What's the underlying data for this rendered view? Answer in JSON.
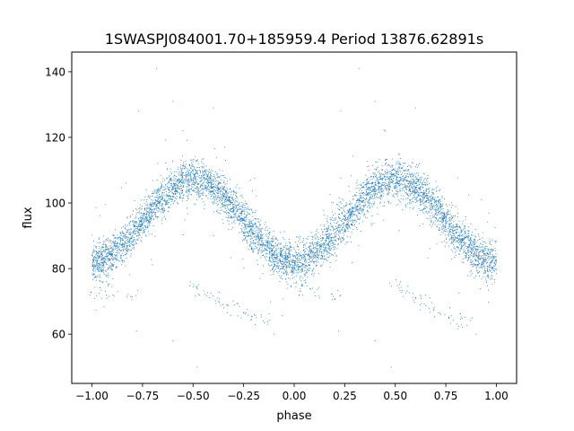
{
  "chart_data": {
    "type": "scatter",
    "title": "1SWASPJ084001.70+185959.4 Period 13876.62891s",
    "xlabel": "phase",
    "ylabel": "flux",
    "xlim": [
      -1.1,
      1.1
    ],
    "ylim": [
      45,
      146
    ],
    "xticks": [
      -1.0,
      -0.75,
      -0.5,
      -0.25,
      0.0,
      0.25,
      0.5,
      0.75,
      1.0
    ],
    "xtick_labels": [
      "−1.00",
      "−0.75",
      "−0.50",
      "−0.25",
      "0.00",
      "0.25",
      "0.50",
      "0.75",
      "1.00"
    ],
    "yticks": [
      60,
      80,
      100,
      120,
      140
    ],
    "ytick_labels": [
      "60",
      "80",
      "100",
      "120",
      "140"
    ],
    "grid": false,
    "marker_color": "#1f77b4",
    "model": {
      "description": "folded sinusoidal light curve, dense band, phase mirrored",
      "mean_flux": 94.5,
      "amplitude": 12.5,
      "max_phase": 0.5,
      "band_halfwidth": 4.0,
      "n_points": 6000,
      "lower_branch_points": [
        [
          -0.5,
          75
        ],
        [
          -0.45,
          73
        ],
        [
          -0.4,
          71
        ],
        [
          -0.35,
          69
        ],
        [
          -0.3,
          67.5
        ],
        [
          -0.25,
          66
        ],
        [
          -0.2,
          65
        ],
        [
          -0.15,
          64
        ],
        [
          0.5,
          75
        ],
        [
          0.55,
          73
        ],
        [
          0.6,
          71
        ],
        [
          0.65,
          69
        ],
        [
          0.7,
          67.5
        ],
        [
          0.75,
          66
        ],
        [
          0.8,
          65
        ],
        [
          0.85,
          64
        ],
        [
          -0.98,
          73
        ],
        [
          -0.9,
          72.5
        ],
        [
          -0.8,
          72
        ],
        [
          0.02,
          73
        ],
        [
          0.1,
          72.5
        ],
        [
          0.2,
          72
        ]
      ],
      "outliers": [
        [
          -0.68,
          141
        ],
        [
          -0.6,
          131
        ],
        [
          -0.4,
          129
        ],
        [
          0.32,
          141
        ],
        [
          0.4,
          131
        ],
        [
          0.6,
          129
        ],
        [
          -0.77,
          128
        ],
        [
          0.23,
          128
        ],
        [
          -0.55,
          122
        ],
        [
          0.45,
          122
        ],
        [
          -0.48,
          50
        ],
        [
          0.48,
          50
        ],
        [
          -0.6,
          58
        ],
        [
          0.4,
          58
        ],
        [
          -0.78,
          61
        ],
        [
          0.22,
          61
        ],
        [
          0.9,
          60
        ],
        [
          -0.1,
          60
        ]
      ]
    }
  }
}
